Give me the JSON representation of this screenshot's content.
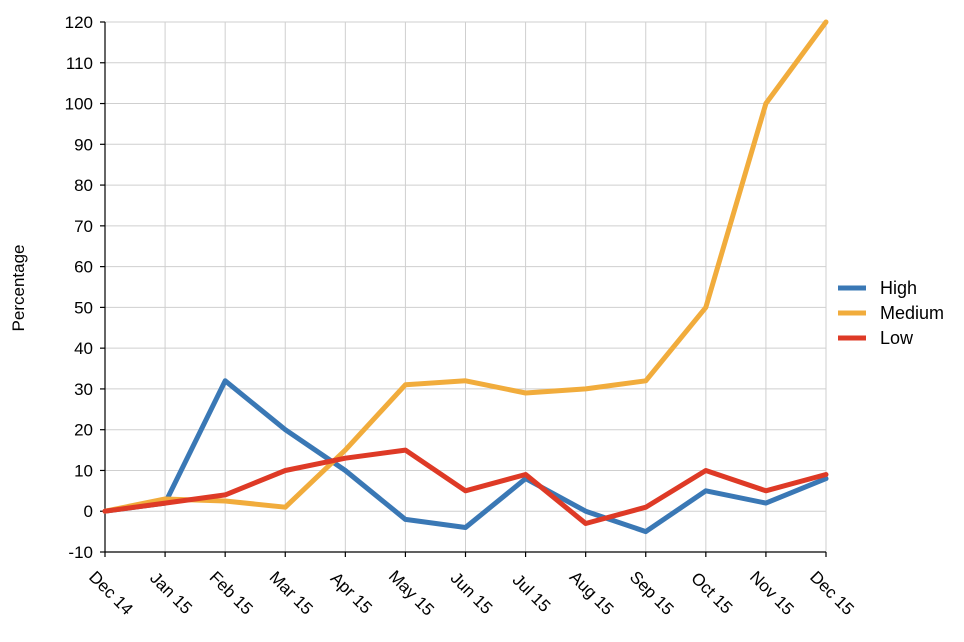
{
  "chart_data": {
    "type": "line",
    "ylabel": "Percentage",
    "xlabel": "",
    "categories": [
      "Dec 14",
      "Jan 15",
      "Feb 15",
      "Mar 15",
      "Apr 15",
      "May 15",
      "Jun 15",
      "Jul 15",
      "Aug 15",
      "Sep 15",
      "Oct 15",
      "Nov 15",
      "Dec 15"
    ],
    "ylim": [
      -10,
      120
    ],
    "yticks": [
      -10,
      0,
      10,
      20,
      30,
      40,
      50,
      60,
      70,
      80,
      90,
      100,
      110,
      120
    ],
    "grid": true,
    "legend_position": "right",
    "series": [
      {
        "name": "High",
        "color": "#3a78b5",
        "values": [
          0,
          2,
          32,
          20,
          10,
          -2,
          -4,
          8,
          0,
          -5,
          5,
          2,
          8
        ]
      },
      {
        "name": "Medium",
        "color": "#f1ac3c",
        "values": [
          0,
          3,
          2.5,
          1,
          15,
          31,
          32,
          29,
          30,
          32,
          50,
          100,
          120
        ]
      },
      {
        "name": "Low",
        "color": "#de3a26",
        "values": [
          0,
          2,
          4,
          10,
          13,
          15,
          5,
          9,
          -3,
          1,
          10,
          5,
          9
        ]
      }
    ]
  }
}
